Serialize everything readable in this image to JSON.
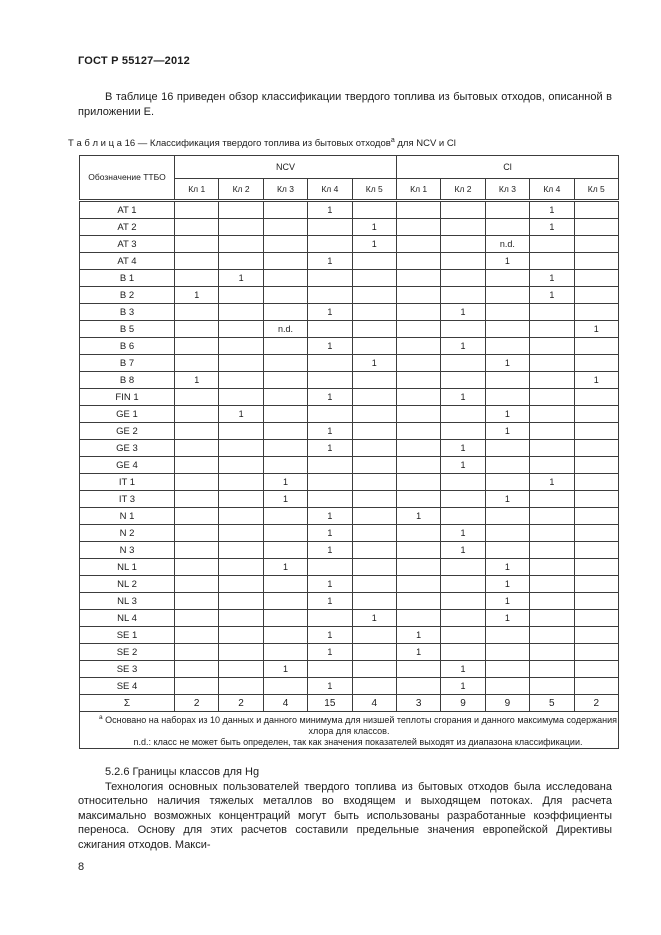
{
  "header": {
    "doc_code": "ГОСТ Р 55127—2012"
  },
  "intro": {
    "text": "В таблице 16 приведен обзор классификации твердого топлива из бытовых отходов, описанной в приложении Е."
  },
  "table": {
    "title_prefix": "Т а б л и ц а  16 — Классификация твердого топлива из бытовых отходов",
    "title_footnote_marker": "а",
    "title_suffix": " для NCV и Cl",
    "designation_header": "Обозначение ТТБО",
    "groups": [
      "NCV",
      "Cl"
    ],
    "class_headers": [
      "Кл 1",
      "Кл 2",
      "Кл 3",
      "Кл 4",
      "Кл 5"
    ],
    "rows": [
      {
        "label": "AT 1",
        "cells": [
          "",
          "",
          "",
          "1",
          "",
          "",
          "",
          "",
          "1",
          ""
        ]
      },
      {
        "label": "AT 2",
        "cells": [
          "",
          "",
          "",
          "",
          "1",
          "",
          "",
          "",
          "1",
          ""
        ]
      },
      {
        "label": "AT 3",
        "cells": [
          "",
          "",
          "",
          "",
          "1",
          "",
          "",
          "n.d.",
          "",
          ""
        ]
      },
      {
        "label": "AT 4",
        "cells": [
          "",
          "",
          "",
          "1",
          "",
          "",
          "",
          "1",
          "",
          ""
        ]
      },
      {
        "label": "B 1",
        "cells": [
          "",
          "1",
          "",
          "",
          "",
          "",
          "",
          "",
          "1",
          ""
        ]
      },
      {
        "label": "B 2",
        "cells": [
          "1",
          "",
          "",
          "",
          "",
          "",
          "",
          "",
          "1",
          ""
        ]
      },
      {
        "label": "B 3",
        "cells": [
          "",
          "",
          "",
          "1",
          "",
          "",
          "1",
          "",
          "",
          ""
        ]
      },
      {
        "label": "B 5",
        "cells": [
          "",
          "",
          "n.d.",
          "",
          "",
          "",
          "",
          "",
          "",
          "1"
        ]
      },
      {
        "label": "B 6",
        "cells": [
          "",
          "",
          "",
          "1",
          "",
          "",
          "1",
          "",
          "",
          ""
        ]
      },
      {
        "label": "B 7",
        "cells": [
          "",
          "",
          "",
          "",
          "1",
          "",
          "",
          "1",
          "",
          ""
        ]
      },
      {
        "label": "B 8",
        "cells": [
          "1",
          "",
          "",
          "",
          "",
          "",
          "",
          "",
          "",
          "1"
        ]
      },
      {
        "label": "FIN 1",
        "cells": [
          "",
          "",
          "",
          "1",
          "",
          "",
          "1",
          "",
          "",
          ""
        ]
      },
      {
        "label": "GE 1",
        "cells": [
          "",
          "1",
          "",
          "",
          "",
          "",
          "",
          "1",
          "",
          ""
        ]
      },
      {
        "label": "GE 2",
        "cells": [
          "",
          "",
          "",
          "1",
          "",
          "",
          "",
          "1",
          "",
          ""
        ]
      },
      {
        "label": "GE 3",
        "cells": [
          "",
          "",
          "",
          "1",
          "",
          "",
          "1",
          "",
          "",
          ""
        ]
      },
      {
        "label": "GE 4",
        "cells": [
          "",
          "",
          "",
          "",
          "",
          "",
          "1",
          "",
          "",
          ""
        ]
      },
      {
        "label": "IT 1",
        "cells": [
          "",
          "",
          "1",
          "",
          "",
          "",
          "",
          "",
          "1",
          ""
        ]
      },
      {
        "label": "IT 3",
        "cells": [
          "",
          "",
          "1",
          "",
          "",
          "",
          "",
          "1",
          "",
          ""
        ]
      },
      {
        "label": "N 1",
        "cells": [
          "",
          "",
          "",
          "1",
          "",
          "1",
          "",
          "",
          "",
          ""
        ]
      },
      {
        "label": "N 2",
        "cells": [
          "",
          "",
          "",
          "1",
          "",
          "",
          "1",
          "",
          "",
          ""
        ]
      },
      {
        "label": "N 3",
        "cells": [
          "",
          "",
          "",
          "1",
          "",
          "",
          "1",
          "",
          "",
          ""
        ]
      },
      {
        "label": "NL 1",
        "cells": [
          "",
          "",
          "1",
          "",
          "",
          "",
          "",
          "1",
          "",
          ""
        ]
      },
      {
        "label": "NL 2",
        "cells": [
          "",
          "",
          "",
          "1",
          "",
          "",
          "",
          "1",
          "",
          ""
        ]
      },
      {
        "label": "NL 3",
        "cells": [
          "",
          "",
          "",
          "1",
          "",
          "",
          "",
          "1",
          "",
          ""
        ]
      },
      {
        "label": "NL 4",
        "cells": [
          "",
          "",
          "",
          "",
          "1",
          "",
          "",
          "1",
          "",
          ""
        ]
      },
      {
        "label": "SE 1",
        "cells": [
          "",
          "",
          "",
          "1",
          "",
          "1",
          "",
          "",
          "",
          ""
        ]
      },
      {
        "label": "SE 2",
        "cells": [
          "",
          "",
          "",
          "1",
          "",
          "1",
          "",
          "",
          "",
          ""
        ]
      },
      {
        "label": "SE 3",
        "cells": [
          "",
          "",
          "1",
          "",
          "",
          "",
          "1",
          "",
          "",
          ""
        ]
      },
      {
        "label": "SE 4",
        "cells": [
          "",
          "",
          "",
          "1",
          "",
          "",
          "1",
          "",
          "",
          ""
        ]
      }
    ],
    "sum_row": {
      "label": "Σ",
      "cells": [
        "2",
        "2",
        "4",
        "15",
        "4",
        "3",
        "9",
        "9",
        "5",
        "2"
      ]
    },
    "footnote_marker": "а",
    "footnote_a": "Основано на наборах из 10 данных и данного минимума для низшей теплоты сгорания и данного максимума содержания хлора для классов.",
    "footnote_nd": "n.d.: класс не может быть определен, так как значения показателей выходят из диапазона классификации."
  },
  "section": {
    "heading": "5.2.6  Границы классов для Hg",
    "body": "Технология основных пользователей твердого топлива из бытовых отходов была исследована относительно наличия тяжелых металлов во входящем и выходящем потоках. Для расчета максимально возможных концентраций могут быть использованы разработанные коэффициенты переноса. Основу для этих расчетов составили предельные значения европейской Директивы сжигания отходов. Макси-"
  },
  "footer": {
    "page_number": "8"
  }
}
